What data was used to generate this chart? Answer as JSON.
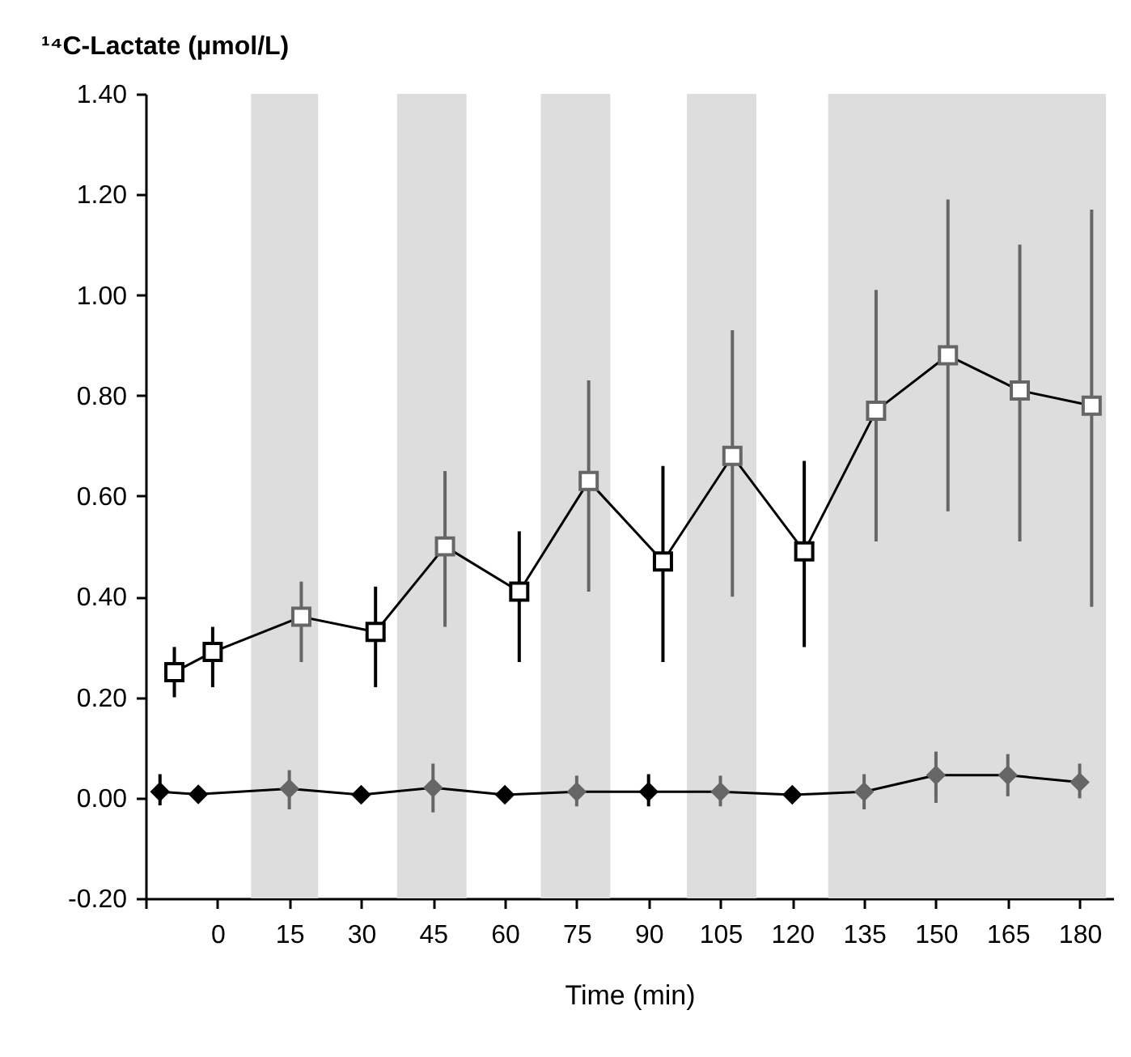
{
  "chart_data": {
    "type": "line",
    "ylabel": "¹⁴C-Lactate (µmol/L)",
    "xlabel": "Time (min)",
    "xlim": [
      -15,
      187
    ],
    "xticks": [
      {
        "value": -15,
        "label": null
      },
      0,
      15,
      30,
      45,
      60,
      75,
      90,
      105,
      120,
      135,
      150,
      165,
      180
    ],
    "ylim": [
      -0.2,
      1.4
    ],
    "yticks": [
      {
        "value": -0.2,
        "label": "-0.20"
      },
      {
        "value": 0,
        "label": "0.00"
      },
      {
        "value": 0.2,
        "label": "0.20"
      },
      {
        "value": 0.4,
        "label": "0.40"
      },
      {
        "value": 0.6,
        "label": "0.60"
      },
      {
        "value": 0.8,
        "label": "0.80"
      },
      {
        "value": 1.0,
        "label": "1.00"
      },
      {
        "value": 1.2,
        "label": "1.20"
      },
      {
        "value": 1.4,
        "label": "1.40"
      }
    ],
    "bands": [
      {
        "axis": "x",
        "from": 7,
        "to": 21,
        "color": "#dddddd"
      },
      {
        "axis": "x",
        "from": 37.5,
        "to": 52,
        "color": "#dddddd"
      },
      {
        "axis": "x",
        "from": 67.5,
        "to": 82,
        "color": "#dddddd"
      },
      {
        "axis": "x",
        "from": 98,
        "to": 112.5,
        "color": "#dddddd"
      },
      {
        "axis": "x",
        "from": 127.5,
        "to": 185.5,
        "color": "#dddddd"
      }
    ],
    "series": [
      {
        "marker": "square",
        "color": "#000000",
        "x": [
          -9,
          -1,
          17.5,
          33,
          47.5,
          63,
          77.5,
          93,
          107.5,
          122.5,
          137.5,
          152.5,
          167.5,
          182.5
        ],
        "values": [
          0.25,
          0.29,
          0.36,
          0.33,
          0.5,
          0.41,
          0.63,
          0.47,
          0.68,
          0.49,
          0.77,
          0.88,
          0.81,
          0.78
        ],
        "errors": [
          [
            0.2,
            0.3
          ],
          [
            0.22,
            0.34
          ],
          [
            0.27,
            0.43
          ],
          [
            0.22,
            0.42
          ],
          [
            0.34,
            0.65
          ],
          [
            0.27,
            0.53
          ],
          [
            0.41,
            0.83
          ],
          [
            0.27,
            0.66
          ],
          [
            0.4,
            0.93
          ],
          [
            0.3,
            0.67
          ],
          [
            0.51,
            1.01
          ],
          [
            0.57,
            1.19
          ],
          [
            0.51,
            1.1
          ],
          [
            0.38,
            1.17
          ]
        ],
        "colors": [
          "#000000",
          "#000000",
          "#666666",
          "#000000",
          "#666666",
          "#000000",
          "#666666",
          "#000000",
          "#666666",
          "#000000",
          "#666666",
          "#666666",
          "#666666",
          "#666666"
        ]
      },
      {
        "marker": "diamond",
        "color": "#000000",
        "x": [
          -12,
          -4,
          15,
          30,
          45,
          60,
          75,
          90,
          105,
          120,
          135,
          150,
          165,
          180
        ],
        "values": [
          0.012,
          0.007,
          0.018,
          0.006,
          0.02,
          0.006,
          0.012,
          0.012,
          0.012,
          0.006,
          0.012,
          0.045,
          0.045,
          0.031
        ],
        "errors": [
          [
            -0.015,
            0.047
          ],
          null,
          [
            -0.023,
            0.055
          ],
          null,
          [
            -0.029,
            0.068
          ],
          null,
          [
            -0.017,
            0.044
          ],
          [
            -0.017,
            0.047
          ],
          [
            -0.017,
            0.044
          ],
          null,
          [
            -0.023,
            0.047
          ],
          [
            -0.01,
            0.092
          ],
          [
            0.003,
            0.087
          ],
          [
            -0.001,
            0.068
          ]
        ],
        "colors": [
          "#000000",
          "#000000",
          "#666666",
          "#000000",
          "#666666",
          "#000000",
          "#666666",
          "#000000",
          "#666666",
          "#000000",
          "#666666",
          "#666666",
          "#666666",
          "#666666"
        ]
      }
    ]
  }
}
